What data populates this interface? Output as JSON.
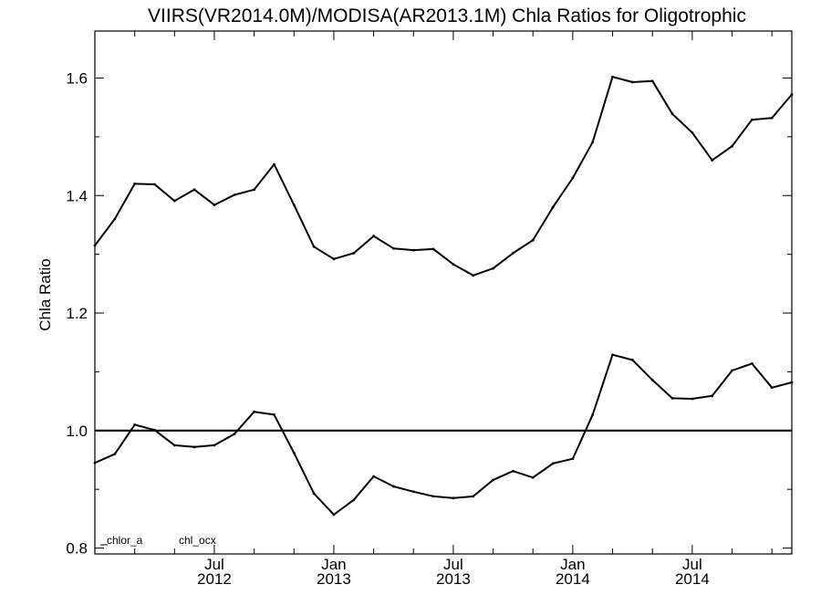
{
  "chart_data": {
    "type": "line",
    "title": "VIIRS(VR2014.0M)/MODISA(AR2013.1M)  Chla Ratios for Oligotrophic",
    "xlabel": "",
    "ylabel": "Chla Ratio",
    "ylim": [
      0.79,
      1.68
    ],
    "xlim": [
      "2012-01",
      "2014-12"
    ],
    "yticks": [
      0.8,
      1.0,
      1.2,
      1.4,
      1.6
    ],
    "y_tick_labels": [
      "0.8",
      "1.0",
      "1.2",
      "1.4",
      "1.6"
    ],
    "x_tick_labels": [
      {
        "month": "Jul",
        "year": "2012"
      },
      {
        "month": "Jan",
        "year": "2013"
      },
      {
        "month": "Jul",
        "year": "2013"
      },
      {
        "month": "Jan",
        "year": "2014"
      },
      {
        "month": "Jul",
        "year": "2014"
      }
    ],
    "x_tick_dates": [
      "2012-07",
      "2013-01",
      "2013-07",
      "2014-01",
      "2014-07"
    ],
    "reference_line": 1.0,
    "grid": false,
    "legend_position": "bottom-left",
    "x": [
      "2012-01",
      "2012-02",
      "2012-03",
      "2012-04",
      "2012-05",
      "2012-06",
      "2012-07",
      "2012-08",
      "2012-09",
      "2012-10",
      "2012-11",
      "2012-12",
      "2013-01",
      "2013-02",
      "2013-03",
      "2013-04",
      "2013-05",
      "2013-06",
      "2013-07",
      "2013-08",
      "2013-09",
      "2013-10",
      "2013-11",
      "2013-12",
      "2014-01",
      "2014-02",
      "2014-03",
      "2014-04",
      "2014-05",
      "2014-06",
      "2014-07",
      "2014-08",
      "2014-09",
      "2014-10",
      "2014-11",
      "2014-12"
    ],
    "series": [
      {
        "name": "chlor_a",
        "values": [
          1.315,
          1.36,
          1.42,
          1.419,
          1.391,
          1.41,
          1.384,
          1.401,
          1.41,
          1.453,
          1.384,
          1.313,
          1.292,
          1.302,
          1.331,
          1.31,
          1.307,
          1.309,
          1.283,
          1.264,
          1.276,
          1.302,
          1.324,
          1.38,
          1.43,
          1.491,
          1.602,
          1.593,
          1.595,
          1.539,
          1.507,
          1.46,
          1.484,
          1.529,
          1.532,
          1.572
        ]
      },
      {
        "name": "chl_ocx",
        "values": [
          0.945,
          0.96,
          1.01,
          1.001,
          0.975,
          0.972,
          0.975,
          0.994,
          1.032,
          1.027,
          0.962,
          0.893,
          0.857,
          0.882,
          0.922,
          0.905,
          0.896,
          0.888,
          0.885,
          0.888,
          0.916,
          0.931,
          0.92,
          0.944,
          0.952,
          1.027,
          1.129,
          1.12,
          1.086,
          1.055,
          1.054,
          1.059,
          1.102,
          1.114,
          1.073,
          1.082
        ]
      }
    ]
  },
  "colors": {
    "line": "#000000",
    "axis": "#000000",
    "background": "#ffffff"
  }
}
